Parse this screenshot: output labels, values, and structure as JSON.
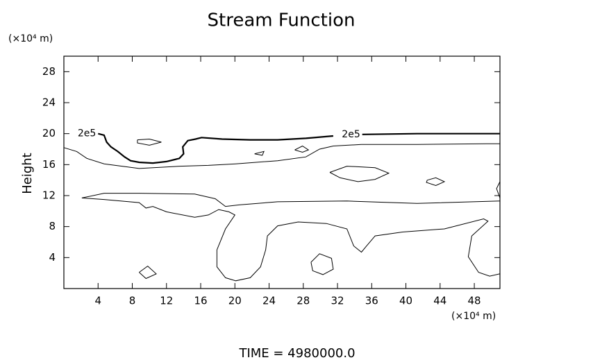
{
  "chart_data": {
    "type": "contour",
    "title": "Stream Function",
    "ylabel": "Height",
    "yunit": "(×10⁴ m)",
    "xunit": "(×10⁴ m)",
    "footer": "TIME = 4980000.0",
    "xlim": [
      0,
      51
    ],
    "ylim": [
      0,
      30
    ],
    "xticks": [
      4,
      8,
      12,
      16,
      20,
      24,
      28,
      32,
      36,
      40,
      44,
      48
    ],
    "yticks": [
      4,
      8,
      12,
      16,
      20,
      24,
      28
    ],
    "color": "#000000",
    "contours": [
      {
        "label": "2e5",
        "bold": true,
        "x": [
          4.0,
          4.7,
          5.0,
          5.5,
          6.3,
          7.1,
          7.8,
          8.8,
          10.4,
          12.0,
          13.5,
          14.0,
          13.9,
          14.5,
          15.4,
          16.1,
          18.5,
          21.8,
          25.0,
          28.3,
          31.5,
          null,
          34.9,
          41.3,
          51.0
        ],
        "y": [
          20.0,
          19.8,
          18.9,
          18.3,
          17.7,
          17.0,
          16.5,
          16.3,
          16.2,
          16.4,
          16.8,
          17.4,
          18.3,
          19.1,
          19.3,
          19.5,
          19.3,
          19.2,
          19.2,
          19.4,
          19.7,
          null,
          19.9,
          20.0,
          20.0
        ]
      },
      {
        "x": [
          0,
          1.5,
          2.7,
          4.7,
          8.8,
          13.6,
          16.9,
          20.1,
          25.0,
          28.3,
          29.9,
          31.5,
          34.8,
          41.3,
          49.4,
          51
        ],
        "y": [
          18.2,
          17.7,
          16.8,
          16.1,
          15.5,
          15.8,
          15.9,
          16.1,
          16.5,
          17.0,
          18.0,
          18.4,
          18.6,
          18.6,
          18.7,
          18.7
        ]
      },
      {
        "x": [
          2.1,
          4.7,
          8.8,
          15.3,
          17.7,
          18.9,
          20.5,
          25.0,
          33.1,
          41.3,
          51
        ],
        "y": [
          11.7,
          12.3,
          12.3,
          12.2,
          11.6,
          10.6,
          10.8,
          11.2,
          11.3,
          11.0,
          11.3
        ]
      },
      {
        "x": [
          2.1,
          4.7,
          8.8,
          9.6,
          10.4,
          12.0,
          15.3,
          16.9,
          18.1,
          19.3,
          20.0,
          18.9,
          17.9,
          17.9,
          18.9,
          20.1,
          21.8,
          23.0,
          23.6,
          23.8,
          25.0,
          27.4,
          30.7,
          33.1,
          33.9,
          34.8,
          35.4,
          36.4,
          39.6,
          44.5,
          49.1,
          49.6,
          47.7,
          47.3,
          48.5,
          49.8,
          51
        ],
        "y": [
          11.7,
          11.5,
          11.1,
          10.4,
          10.6,
          9.9,
          9.2,
          9.5,
          10.2,
          9.9,
          9.5,
          7.7,
          5.0,
          2.8,
          1.4,
          1.0,
          1.4,
          2.8,
          5.0,
          6.8,
          8.1,
          8.6,
          8.4,
          7.7,
          5.5,
          4.7,
          5.5,
          6.8,
          7.3,
          7.7,
          9.0,
          8.7,
          6.8,
          4.1,
          2.1,
          1.6,
          1.9
        ]
      },
      {
        "x": [
          8.6,
          10.0,
          11.4,
          10.0,
          8.6,
          8.6
        ],
        "y": [
          19.2,
          19.3,
          18.9,
          18.5,
          18.8,
          19.2
        ]
      },
      {
        "x": [
          22.3,
          23.4,
          23.2,
          22.3
        ],
        "y": [
          17.4,
          17.7,
          17.2,
          17.4
        ]
      },
      {
        "x": [
          27.0,
          27.9,
          28.6,
          27.9,
          27.0
        ],
        "y": [
          17.9,
          18.4,
          17.9,
          17.6,
          17.9
        ]
      },
      {
        "x": [
          31.1,
          33.1,
          36.4,
          38.0,
          36.4,
          34.4,
          32.3,
          31.1
        ],
        "y": [
          15.0,
          15.8,
          15.6,
          14.9,
          14.1,
          13.8,
          14.3,
          15.0
        ]
      },
      {
        "x": [
          42.5,
          43.5,
          44.5,
          43.5,
          42.4,
          42.5
        ],
        "y": [
          14.0,
          14.3,
          13.8,
          13.3,
          13.7,
          14.0
        ]
      },
      {
        "x": [
          51,
          50.6,
          51
        ],
        "y": [
          13.8,
          12.9,
          11.7
        ]
      },
      {
        "x": [
          8.8,
          9.8,
          10.8,
          9.6,
          8.8
        ],
        "y": [
          2.1,
          2.9,
          1.9,
          1.3,
          2.1
        ]
      },
      {
        "x": [
          28.9,
          29.9,
          31.3,
          31.5,
          30.3,
          29.1,
          28.9
        ],
        "y": [
          3.4,
          4.5,
          3.9,
          2.5,
          1.8,
          2.3,
          3.4
        ]
      }
    ]
  }
}
